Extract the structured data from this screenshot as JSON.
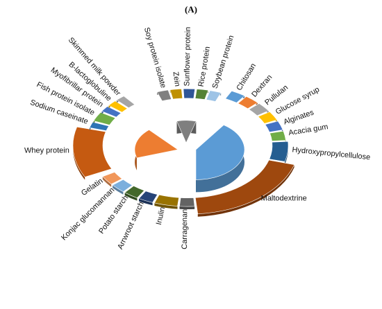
{
  "panel_label": "(A)",
  "chart_data": {
    "type": "pie",
    "title": "",
    "legend": "none",
    "groups": [
      {
        "name": "",
        "color": "#ED7D31",
        "slices": [
          {
            "label": "Whey protein",
            "value": 13,
            "color": "#C55A11"
          },
          {
            "label": "Sodium caseinate",
            "value": 2,
            "color": "#2E75B6"
          },
          {
            "label": "Fish protein isolate",
            "value": 3,
            "color": "#70AD47"
          },
          {
            "label": "Myofibrillar protein",
            "value": 2,
            "color": "#4472C4"
          },
          {
            "label": "B-lactoglobuline",
            "value": 2,
            "color": "#FFC000"
          },
          {
            "label": "Skimmed milk powder",
            "value": 2,
            "color": "#A5A5A5"
          }
        ]
      },
      {
        "name": "",
        "color": "#7F7F7F",
        "slices": [
          {
            "label": "Soy protein isolate",
            "value": 2,
            "color": "#808080"
          },
          {
            "label": "Zein",
            "value": 2,
            "color": "#BF9000"
          },
          {
            "label": "Sunflower protein",
            "value": 2,
            "color": "#2F5597"
          },
          {
            "label": "Rice protein",
            "value": 2,
            "color": "#548235"
          },
          {
            "label": "Soybean protein",
            "value": 2,
            "color": "#9DC3E6"
          }
        ]
      },
      {
        "name": "",
        "color": "#5B9BD5",
        "slices": [
          {
            "label": "Chitosan",
            "value": 2,
            "color": "#5B9BD5"
          },
          {
            "label": "Dextran",
            "value": 2,
            "color": "#ED7D31"
          },
          {
            "label": "Pullulan",
            "value": 2,
            "color": "#A5A5A5"
          },
          {
            "label": "Glucose syrup",
            "value": 2,
            "color": "#FFC000"
          },
          {
            "label": "Alginates",
            "value": 2,
            "color": "#4472C4"
          },
          {
            "label": "Acacia gum",
            "value": 2,
            "color": "#70AD47"
          },
          {
            "label": "Hydroxypropylcellulose",
            "value": 4,
            "color": "#255E91"
          },
          {
            "label": "Maltodextrine",
            "value": 14,
            "color": "#9E480E"
          },
          {
            "label": "Carragenan",
            "value": 2,
            "color": "#636363"
          },
          {
            "label": "Inulin",
            "value": 3,
            "color": "#997300"
          },
          {
            "label": "Arrwroot starch",
            "value": 2,
            "color": "#264478"
          },
          {
            "label": "Potato starch",
            "value": 2,
            "color": "#43682B"
          },
          {
            "label": "Konjac glucomannan",
            "value": 2,
            "color": "#7CAFDD"
          },
          {
            "label": "Gelatin",
            "value": 2,
            "color": "#F1975A"
          }
        ]
      }
    ]
  }
}
